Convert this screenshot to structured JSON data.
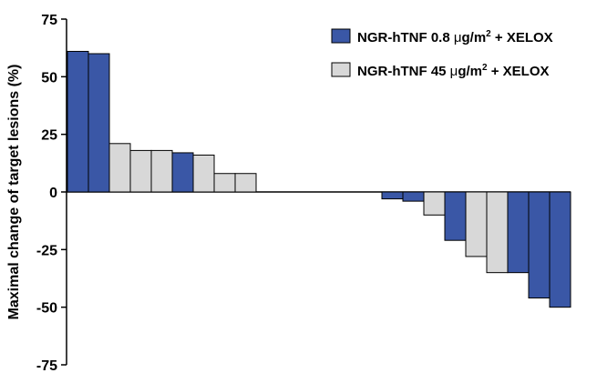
{
  "chart_data": {
    "type": "bar",
    "ylabel": "Maximal change of target lesions (%)",
    "ylim": [
      -75,
      75
    ],
    "yticks": [
      "75",
      "50",
      "25",
      "0",
      "-25",
      "-50",
      "-75"
    ],
    "grid": false,
    "legend_position": "top-right",
    "series": [
      {
        "id": "low",
        "name_parts": [
          "NGR-hTNF 0.8 ",
          "μ",
          "g/m",
          "2",
          " + XELOX"
        ],
        "color": "#3a57a6"
      },
      {
        "id": "high",
        "name_parts": [
          "NGR-hTNF 45 ",
          "μ",
          "g/m",
          "2",
          " + XELOX"
        ],
        "color": "#d8d8d8"
      }
    ],
    "bars": [
      {
        "value": 61,
        "series": "low"
      },
      {
        "value": 60,
        "series": "low"
      },
      {
        "value": 21,
        "series": "high"
      },
      {
        "value": 18,
        "series": "high"
      },
      {
        "value": 18,
        "series": "high"
      },
      {
        "value": 17,
        "series": "low"
      },
      {
        "value": 16,
        "series": "high"
      },
      {
        "value": 8,
        "series": "high"
      },
      {
        "value": 8,
        "series": "high"
      },
      {
        "value": 0,
        "series": "high"
      },
      {
        "value": 0,
        "series": "high"
      },
      {
        "value": 0,
        "series": "high"
      },
      {
        "value": 0,
        "series": "high"
      },
      {
        "value": 0,
        "series": "high"
      },
      {
        "value": 0,
        "series": "high"
      },
      {
        "value": -3,
        "series": "low"
      },
      {
        "value": -4,
        "series": "low"
      },
      {
        "value": -10,
        "series": "high"
      },
      {
        "value": -21,
        "series": "low"
      },
      {
        "value": -28,
        "series": "high"
      },
      {
        "value": -35,
        "series": "high"
      },
      {
        "value": -35,
        "series": "low"
      },
      {
        "value": -46,
        "series": "low"
      },
      {
        "value": -50,
        "series": "low"
      }
    ]
  }
}
